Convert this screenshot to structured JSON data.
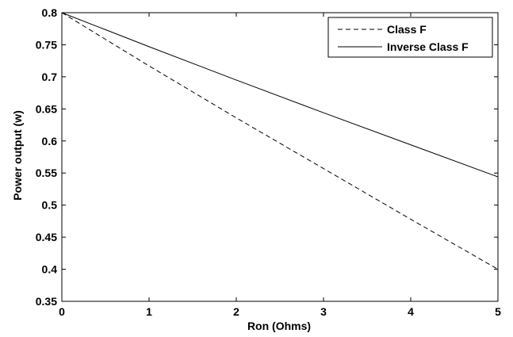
{
  "chart_data": {
    "type": "line",
    "title": "",
    "xlabel": "Ron (Ohms)",
    "ylabel": "Power output (w)",
    "xlim": [
      0,
      5
    ],
    "ylim": [
      0.35,
      0.8
    ],
    "xticks": [
      0,
      1,
      2,
      3,
      4,
      5
    ],
    "xtick_labels": [
      "0",
      "1",
      "2",
      "3",
      "4",
      "5"
    ],
    "yticks": [
      0.35,
      0.4,
      0.45,
      0.5,
      0.55,
      0.6,
      0.65,
      0.7,
      0.75,
      0.8
    ],
    "ytick_labels": [
      "0.35",
      "0.4",
      "0.45",
      "0.5",
      "0.55",
      "0.6",
      "0.65",
      "0.7",
      "0.75",
      "0.8"
    ],
    "grid": false,
    "legend_position": "top-right",
    "series": [
      {
        "name": "Class F",
        "style": "dashed",
        "color": "#000000",
        "x": [
          0,
          1,
          2,
          3,
          4,
          5
        ],
        "y": [
          0.8,
          0.717,
          0.636,
          0.557,
          0.478,
          0.4
        ]
      },
      {
        "name": "Inverse Class F",
        "style": "solid",
        "color": "#000000",
        "x": [
          0,
          1,
          2,
          3,
          4,
          5
        ],
        "y": [
          0.8,
          0.747,
          0.695,
          0.644,
          0.594,
          0.544
        ]
      }
    ]
  }
}
